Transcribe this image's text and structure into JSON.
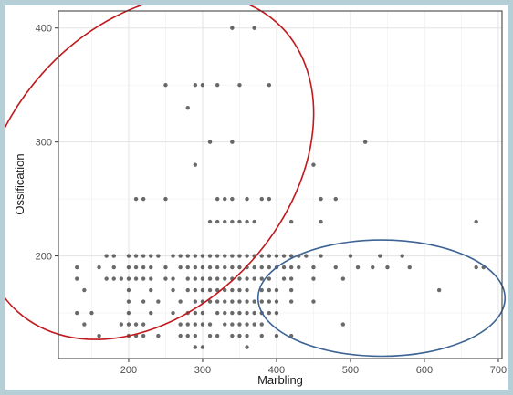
{
  "chart_data": {
    "type": "scatter",
    "title": "",
    "xlabel": "Marbling",
    "ylabel": "Ossification",
    "xlim": [
      105,
      705
    ],
    "ylim": [
      110,
      415
    ],
    "x_ticks": [
      200,
      300,
      400,
      500,
      600,
      700
    ],
    "y_ticks": [
      200,
      300,
      400
    ],
    "grid": true,
    "legend": "none",
    "point_color": "#1a1a1a",
    "points": [
      [
        340,
        400
      ],
      [
        370,
        400
      ],
      [
        250,
        350
      ],
      [
        290,
        350
      ],
      [
        300,
        350
      ],
      [
        320,
        350
      ],
      [
        350,
        350
      ],
      [
        390,
        350
      ],
      [
        280,
        330
      ],
      [
        310,
        300
      ],
      [
        340,
        300
      ],
      [
        520,
        300
      ],
      [
        290,
        280
      ],
      [
        450,
        280
      ],
      [
        210,
        250
      ],
      [
        220,
        250
      ],
      [
        250,
        250
      ],
      [
        320,
        250
      ],
      [
        330,
        250
      ],
      [
        340,
        250
      ],
      [
        360,
        250
      ],
      [
        380,
        250
      ],
      [
        390,
        250
      ],
      [
        460,
        250
      ],
      [
        480,
        250
      ],
      [
        310,
        230
      ],
      [
        320,
        230
      ],
      [
        330,
        230
      ],
      [
        340,
        230
      ],
      [
        350,
        230
      ],
      [
        360,
        230
      ],
      [
        370,
        230
      ],
      [
        420,
        230
      ],
      [
        460,
        230
      ],
      [
        670,
        230
      ],
      [
        170,
        200
      ],
      [
        180,
        200
      ],
      [
        200,
        200
      ],
      [
        210,
        200
      ],
      [
        220,
        200
      ],
      [
        230,
        200
      ],
      [
        240,
        200
      ],
      [
        260,
        200
      ],
      [
        270,
        200
      ],
      [
        280,
        200
      ],
      [
        290,
        200
      ],
      [
        300,
        200
      ],
      [
        310,
        200
      ],
      [
        320,
        200
      ],
      [
        330,
        200
      ],
      [
        340,
        200
      ],
      [
        350,
        200
      ],
      [
        360,
        200
      ],
      [
        370,
        200
      ],
      [
        380,
        200
      ],
      [
        390,
        200
      ],
      [
        400,
        200
      ],
      [
        410,
        200
      ],
      [
        420,
        200
      ],
      [
        430,
        200
      ],
      [
        440,
        200
      ],
      [
        460,
        200
      ],
      [
        500,
        200
      ],
      [
        540,
        200
      ],
      [
        570,
        200
      ],
      [
        130,
        190
      ],
      [
        160,
        190
      ],
      [
        180,
        190
      ],
      [
        200,
        190
      ],
      [
        210,
        190
      ],
      [
        220,
        190
      ],
      [
        230,
        190
      ],
      [
        250,
        190
      ],
      [
        270,
        190
      ],
      [
        280,
        190
      ],
      [
        290,
        190
      ],
      [
        300,
        190
      ],
      [
        310,
        190
      ],
      [
        320,
        190
      ],
      [
        330,
        190
      ],
      [
        340,
        190
      ],
      [
        350,
        190
      ],
      [
        360,
        190
      ],
      [
        370,
        190
      ],
      [
        380,
        190
      ],
      [
        390,
        190
      ],
      [
        400,
        190
      ],
      [
        410,
        190
      ],
      [
        420,
        190
      ],
      [
        430,
        190
      ],
      [
        450,
        190
      ],
      [
        480,
        190
      ],
      [
        510,
        190
      ],
      [
        530,
        190
      ],
      [
        550,
        190
      ],
      [
        580,
        190
      ],
      [
        670,
        190
      ],
      [
        680,
        190
      ],
      [
        130,
        180
      ],
      [
        170,
        180
      ],
      [
        180,
        180
      ],
      [
        190,
        180
      ],
      [
        200,
        180
      ],
      [
        210,
        180
      ],
      [
        220,
        180
      ],
      [
        230,
        180
      ],
      [
        250,
        180
      ],
      [
        260,
        180
      ],
      [
        280,
        180
      ],
      [
        290,
        180
      ],
      [
        300,
        180
      ],
      [
        310,
        180
      ],
      [
        320,
        180
      ],
      [
        330,
        180
      ],
      [
        340,
        180
      ],
      [
        350,
        180
      ],
      [
        360,
        180
      ],
      [
        370,
        180
      ],
      [
        380,
        180
      ],
      [
        390,
        180
      ],
      [
        410,
        180
      ],
      [
        420,
        180
      ],
      [
        450,
        180
      ],
      [
        490,
        180
      ],
      [
        140,
        170
      ],
      [
        200,
        170
      ],
      [
        230,
        170
      ],
      [
        260,
        170
      ],
      [
        280,
        170
      ],
      [
        290,
        170
      ],
      [
        300,
        170
      ],
      [
        310,
        170
      ],
      [
        320,
        170
      ],
      [
        330,
        170
      ],
      [
        340,
        170
      ],
      [
        350,
        170
      ],
      [
        360,
        170
      ],
      [
        380,
        170
      ],
      [
        390,
        170
      ],
      [
        400,
        170
      ],
      [
        420,
        170
      ],
      [
        620,
        170
      ],
      [
        200,
        160
      ],
      [
        220,
        160
      ],
      [
        240,
        160
      ],
      [
        270,
        160
      ],
      [
        290,
        160
      ],
      [
        300,
        160
      ],
      [
        310,
        160
      ],
      [
        320,
        160
      ],
      [
        330,
        160
      ],
      [
        340,
        160
      ],
      [
        350,
        160
      ],
      [
        360,
        160
      ],
      [
        370,
        160
      ],
      [
        380,
        160
      ],
      [
        390,
        160
      ],
      [
        400,
        160
      ],
      [
        420,
        160
      ],
      [
        450,
        160
      ],
      [
        130,
        150
      ],
      [
        150,
        150
      ],
      [
        200,
        150
      ],
      [
        230,
        150
      ],
      [
        260,
        150
      ],
      [
        280,
        150
      ],
      [
        290,
        150
      ],
      [
        300,
        150
      ],
      [
        320,
        150
      ],
      [
        330,
        150
      ],
      [
        340,
        150
      ],
      [
        350,
        150
      ],
      [
        360,
        150
      ],
      [
        370,
        150
      ],
      [
        380,
        150
      ],
      [
        390,
        150
      ],
      [
        400,
        150
      ],
      [
        140,
        140
      ],
      [
        190,
        140
      ],
      [
        200,
        140
      ],
      [
        210,
        140
      ],
      [
        220,
        140
      ],
      [
        270,
        140
      ],
      [
        280,
        140
      ],
      [
        290,
        140
      ],
      [
        300,
        140
      ],
      [
        310,
        140
      ],
      [
        330,
        140
      ],
      [
        340,
        140
      ],
      [
        350,
        140
      ],
      [
        360,
        140
      ],
      [
        370,
        140
      ],
      [
        380,
        140
      ],
      [
        490,
        140
      ],
      [
        160,
        130
      ],
      [
        200,
        130
      ],
      [
        210,
        130
      ],
      [
        220,
        130
      ],
      [
        240,
        130
      ],
      [
        270,
        130
      ],
      [
        280,
        130
      ],
      [
        290,
        130
      ],
      [
        310,
        130
      ],
      [
        320,
        130
      ],
      [
        340,
        130
      ],
      [
        350,
        130
      ],
      [
        360,
        130
      ],
      [
        380,
        130
      ],
      [
        400,
        130
      ],
      [
        420,
        130
      ],
      [
        290,
        120
      ],
      [
        300,
        120
      ],
      [
        360,
        120
      ]
    ],
    "annotations": [
      {
        "shape": "ellipse",
        "color": "#c0191e",
        "center": [
          225,
          278
        ],
        "axis_major": [
          400,
          405
        ],
        "axis_minor": [
          170,
          160
        ]
      },
      {
        "shape": "ellipse",
        "color": "#3d6494",
        "center": [
          542,
          163
        ],
        "radius_x": 167,
        "radius_y": 51
      }
    ]
  }
}
